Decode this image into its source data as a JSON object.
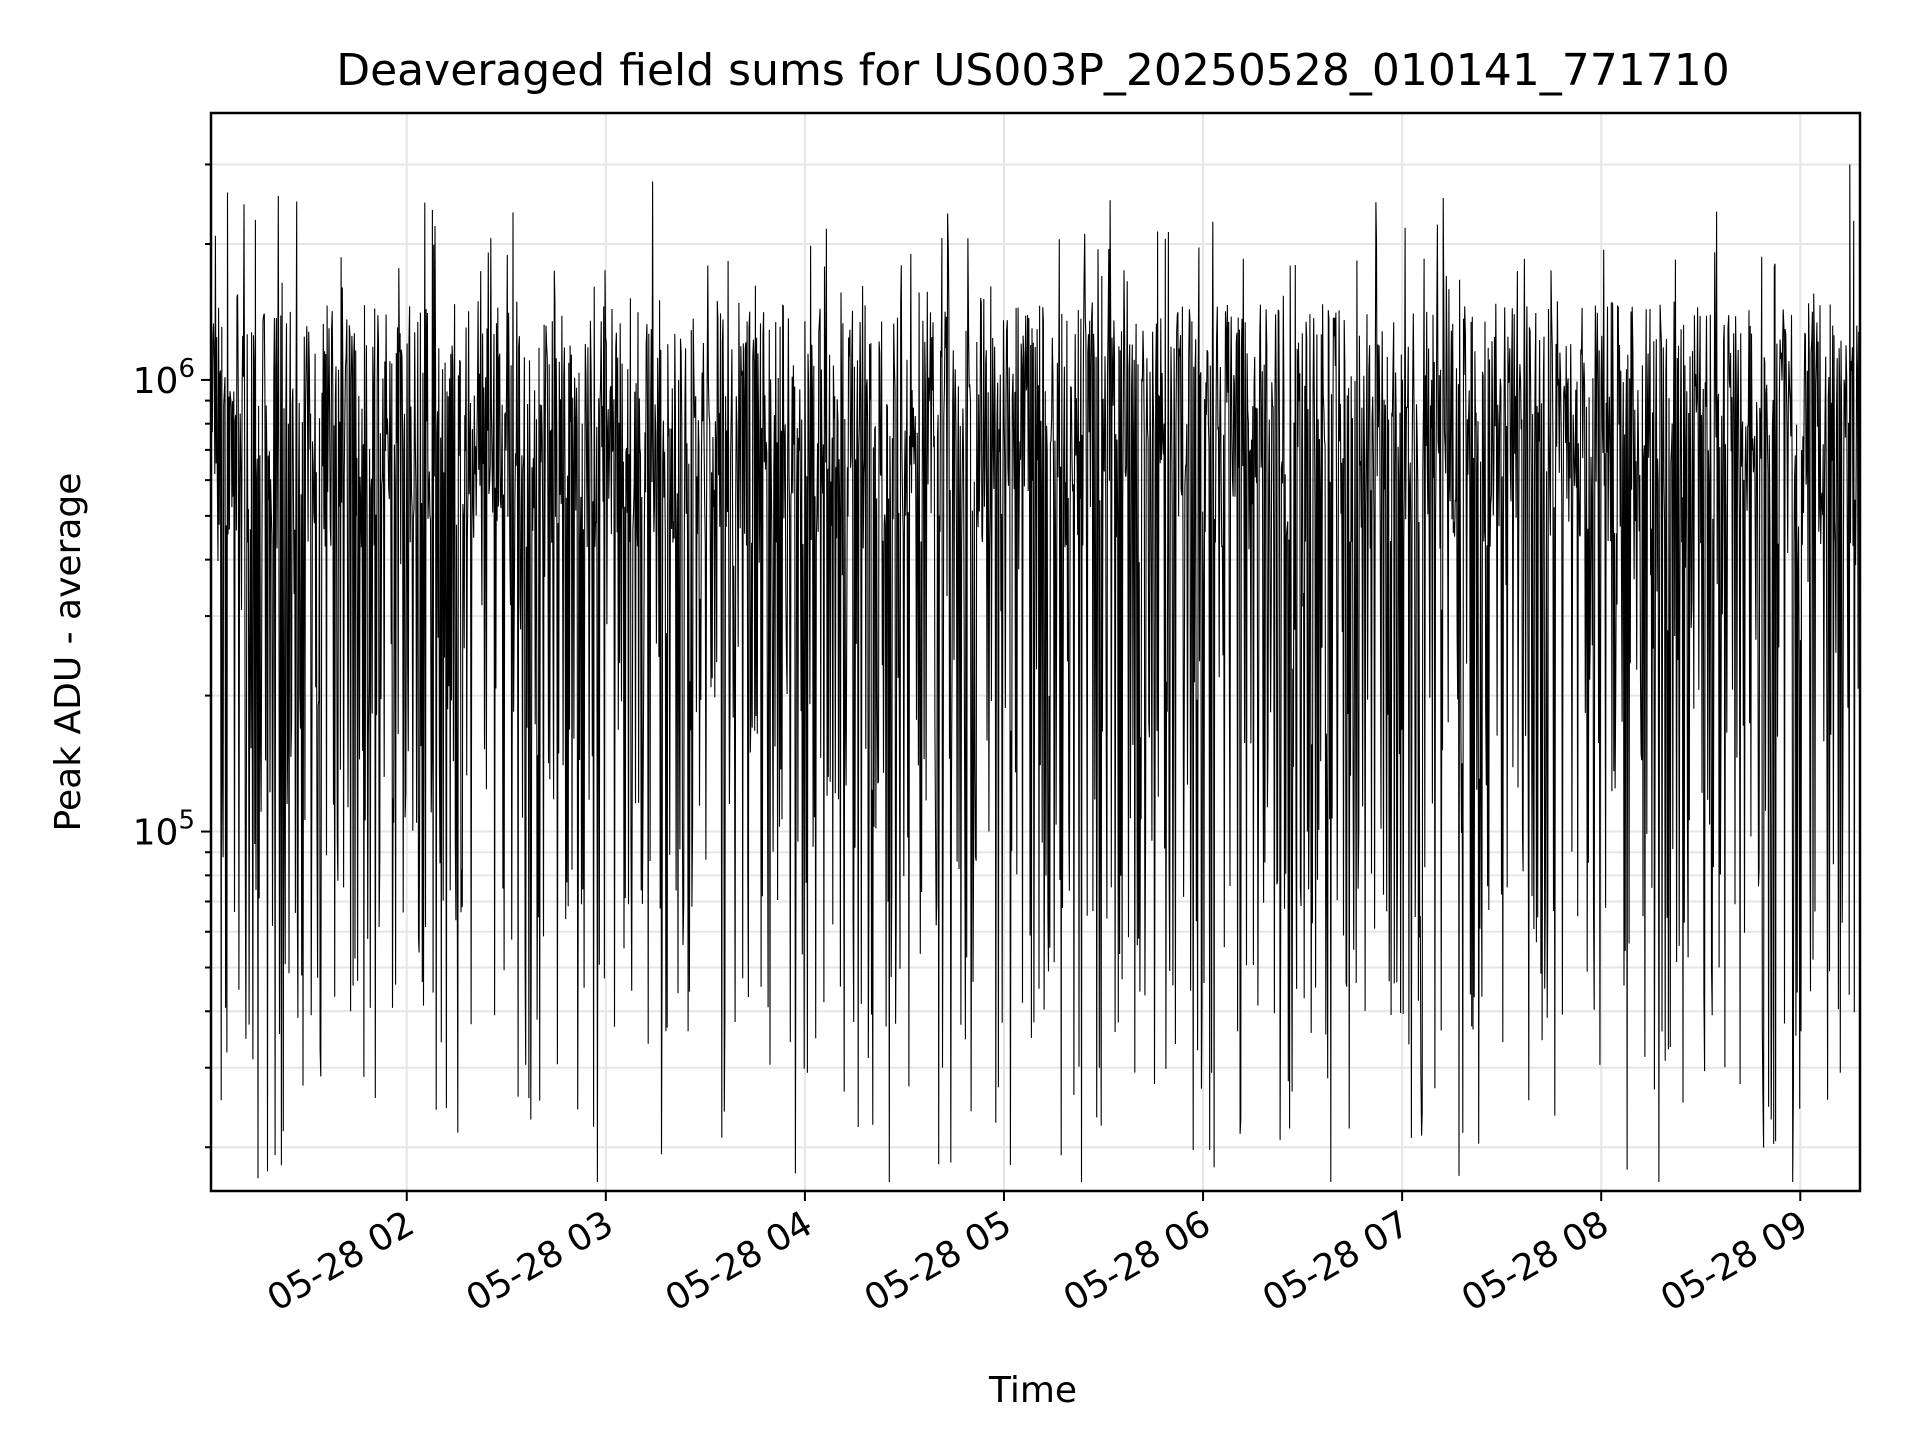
{
  "chart_data": {
    "type": "line",
    "title": "Deaveraged field sums for US003P_20250528_010141_771710",
    "xlabel": "Time",
    "ylabel": "Peak ADU - average",
    "yscale": "log",
    "grid": true,
    "line_color": "#000000",
    "grid_color": "#e6e6e6",
    "xlim": [
      "2025-05-28 01:01",
      "2025-05-28 09:18"
    ],
    "ylim": [
      16000,
      3900000
    ],
    "x_ticks": [
      {
        "value": "2025-05-28 02:00",
        "label": "05-28 02"
      },
      {
        "value": "2025-05-28 03:00",
        "label": "05-28 03"
      },
      {
        "value": "2025-05-28 04:00",
        "label": "05-28 04"
      },
      {
        "value": "2025-05-28 05:00",
        "label": "05-28 05"
      },
      {
        "value": "2025-05-28 06:00",
        "label": "05-28 06"
      },
      {
        "value": "2025-05-28 07:00",
        "label": "05-28 07"
      },
      {
        "value": "2025-05-28 08:00",
        "label": "05-28 08"
      },
      {
        "value": "2025-05-28 09:00",
        "label": "05-28 09"
      }
    ],
    "y_ticks": [
      {
        "value": 100000,
        "base": "10",
        "exp": "5"
      },
      {
        "value": 1000000,
        "base": "10",
        "exp": "6"
      }
    ],
    "notable_peaks": [
      {
        "x": "2025-05-28 01:06",
        "y": 2600000
      },
      {
        "x": "2025-05-28 01:11",
        "y": 2450000
      },
      {
        "x": "2025-05-28 02:32",
        "y": 2350000
      },
      {
        "x": "2025-05-28 03:14",
        "y": 2750000
      },
      {
        "x": "2025-05-28 05:32",
        "y": 2500000
      },
      {
        "x": "2025-05-28 09:15",
        "y": 3000000
      },
      {
        "x": "2025-05-28 09:16",
        "y": 2250000
      }
    ],
    "notable_troughs": [
      {
        "x": "2025-05-28 03:35",
        "y": 21000
      },
      {
        "x": "2025-05-28 04:44",
        "y": 18500
      },
      {
        "x": "2025-05-28 06:26",
        "y": 22000
      },
      {
        "x": "2025-05-28 06:44",
        "y": 22000
      },
      {
        "x": "2025-05-28 07:46",
        "y": 23500
      },
      {
        "x": "2025-05-28 01:43",
        "y": 40000
      },
      {
        "x": "2025-05-28 02:08",
        "y": 44000
      }
    ]
  }
}
